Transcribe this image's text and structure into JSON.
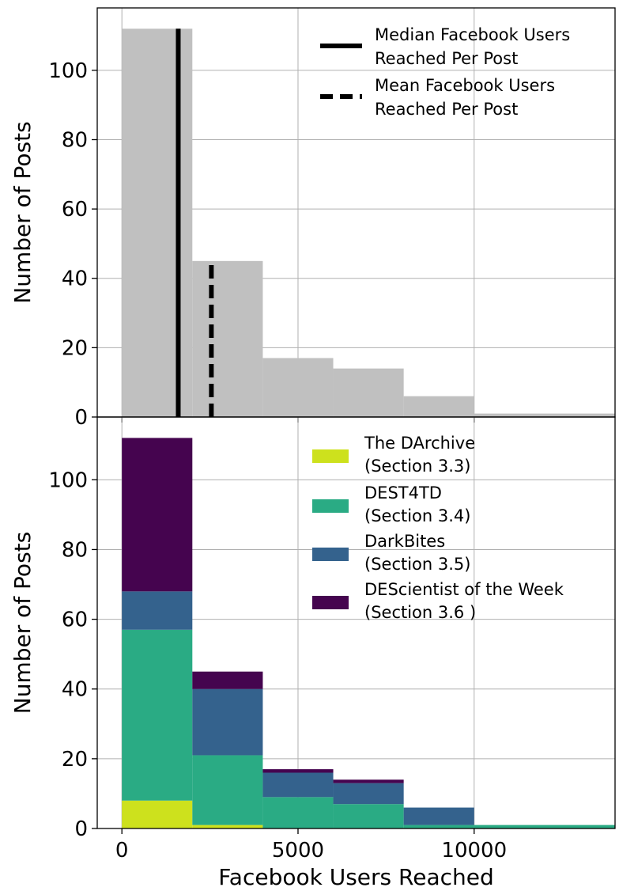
{
  "colors": {
    "hist": "#c0c0c0",
    "grid": "#b0b0b0",
    "darchive": "#cde11d",
    "dest4td": "#2aab84",
    "darkbites": "#34628d",
    "descientist": "#45044f"
  },
  "chart_data": [
    {
      "type": "bar",
      "panel": "top",
      "bins": [
        [
          0,
          2000
        ],
        [
          2000,
          4000
        ],
        [
          4000,
          6000
        ],
        [
          6000,
          8000
        ],
        [
          8000,
          10000
        ],
        [
          10000,
          14000
        ]
      ],
      "values": [
        112,
        45,
        17,
        14,
        6,
        1
      ],
      "median": 1600,
      "mean": 2540,
      "ylabel": "Number of Posts",
      "xlabel": "",
      "xlim": [
        -700,
        14000
      ],
      "ylim": [
        0,
        118
      ],
      "yticks": [
        0,
        20,
        40,
        60,
        80,
        100
      ],
      "xticks": [
        0,
        5000,
        10000
      ],
      "grid": true,
      "legend": {
        "position": "top-right",
        "entries": [
          {
            "style": "solid",
            "label_lines": [
              "Median Facebook Users",
              " Reached Per Post"
            ]
          },
          {
            "style": "dashed",
            "label_lines": [
              "Mean Facebook Users",
              " Reached Per Post"
            ]
          }
        ]
      }
    },
    {
      "type": "bar",
      "panel": "bottom",
      "stacked": true,
      "bins": [
        [
          0,
          2000
        ],
        [
          2000,
          4000
        ],
        [
          4000,
          6000
        ],
        [
          6000,
          8000
        ],
        [
          8000,
          10000
        ],
        [
          10000,
          14000
        ]
      ],
      "series": [
        {
          "name": "The DArchive",
          "name_lines": [
            "The DArchive",
            " (Section 3.3)"
          ],
          "color_key": "darchive",
          "values": [
            8,
            1,
            0,
            0,
            0,
            0
          ]
        },
        {
          "name": "DEST4TD",
          "name_lines": [
            "DEST4TD",
            " (Section 3.4)"
          ],
          "color_key": "dest4td",
          "values": [
            49,
            20,
            9,
            7,
            1,
            1
          ]
        },
        {
          "name": "DarkBites",
          "name_lines": [
            "DarkBites",
            " (Section 3.5)"
          ],
          "color_key": "darkbites",
          "values": [
            11,
            19,
            7,
            6,
            5,
            0
          ]
        },
        {
          "name": "DEScientist of the Week",
          "name_lines": [
            "DEScientist of the Week",
            " (Section 3.6 )"
          ],
          "color_key": "descientist",
          "values": [
            44,
            5,
            1,
            1,
            0,
            0
          ]
        }
      ],
      "ylabel": "Number of Posts",
      "xlabel": "Facebook Users Reached",
      "xlim": [
        -700,
        14000
      ],
      "ylim": [
        0,
        118
      ],
      "yticks": [
        0,
        20,
        40,
        60,
        80,
        100
      ],
      "xticks": [
        0,
        5000,
        10000
      ],
      "xtick_labels": [
        "0",
        "5000",
        "10000"
      ],
      "grid": true,
      "legend": {
        "position": "top-right"
      }
    }
  ]
}
